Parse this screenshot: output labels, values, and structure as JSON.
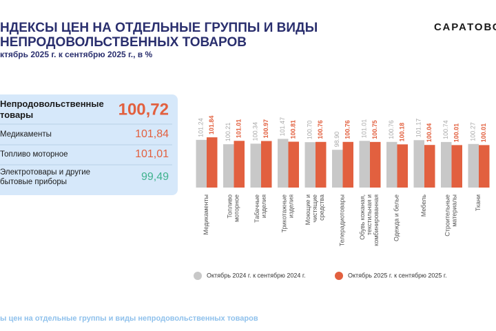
{
  "header": {
    "title_lines": [
      "НДЕКСЫ ЦЕН НА ОТДЕЛЬНЫЕ ГРУППЫ И ВИДЫ",
      "НЕПРОДОВОЛЬСТВЕННЫХ ТОВАРОВ"
    ],
    "subtitle": "ктябрь 2025 г. к сентябрю 2025 г., в %",
    "logo": "САРАТОВС"
  },
  "panel": {
    "rows": [
      {
        "label": "Непродовольственные товары",
        "value": "100,72",
        "color": "#e2603f"
      },
      {
        "label": "Медикаменты",
        "value": "101,84",
        "color": "#e2603f"
      },
      {
        "label": "Топливо моторное",
        "value": "101,01",
        "color": "#e2603f"
      },
      {
        "label": "Электротовары и другие бытовые приборы",
        "value": "99,49",
        "color": "#3fb28e"
      }
    ]
  },
  "footer": "ы цен на отдельные группы и виды непродовольственных товаров",
  "chart_data": {
    "type": "bar",
    "categories": [
      "Медикаменты",
      "Топливо моторное",
      "Табачные изделия",
      "Трикотажные изделия",
      "Моющие и чистящие средства",
      "Телерадиотовары",
      "Обувь кожаная, текстильная и комбинированная",
      "Одежда и белье",
      "Мебель",
      "Строительные материалы",
      "Ткани"
    ],
    "series": [
      {
        "name": "Октябрь 2024 г. к сентябрю 2024 г.",
        "color": "#c8c8c8",
        "values": [
          101.24,
          100.21,
          100.34,
          101.47,
          100.7,
          98.9,
          101.01,
          100.76,
          101.17,
          100.74,
          100.27
        ],
        "value_labels": [
          "101.24",
          "100.21",
          "100.34",
          "101.47",
          "100.70",
          "98.90",
          "101.01",
          "100.76",
          "101.17",
          "100.74",
          "100.27"
        ]
      },
      {
        "name": "Октябрь 2025 г. к сентябрю 2025 г.",
        "color": "#e2603f",
        "values": [
          101.84,
          101.01,
          100.97,
          100.81,
          100.76,
          100.76,
          100.75,
          100.18,
          100.04,
          100.01,
          100.01
        ],
        "value_labels": [
          "101.84",
          "101.01",
          "100.97",
          "100.81",
          "100.76",
          "100.76",
          "100.75",
          "100.18",
          "100.04",
          "100.01",
          "100.01"
        ]
      }
    ],
    "ylim": [
      90,
      103
    ],
    "legend": "bottom"
  }
}
